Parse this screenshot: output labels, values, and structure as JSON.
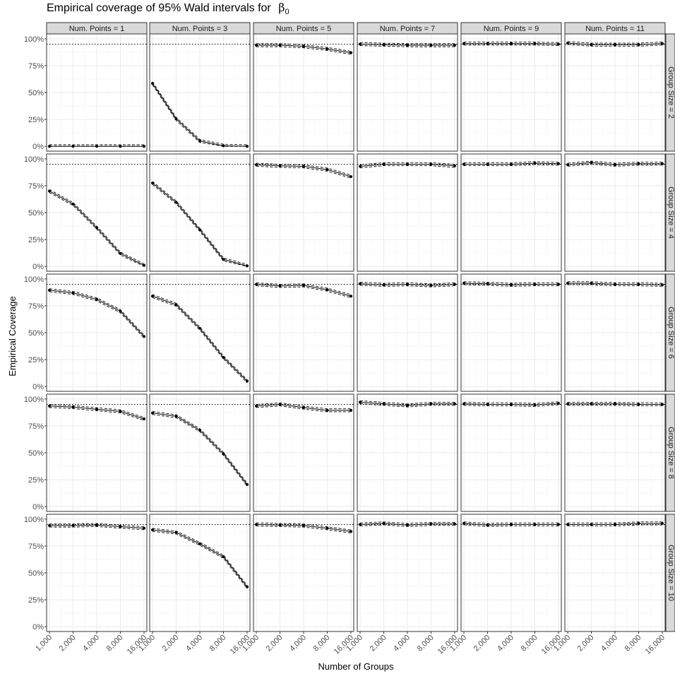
{
  "chart_data": {
    "type": "line",
    "title": "Empirical coverage of 95% Wald intervals for",
    "title_symbol": "β",
    "title_subscript": "0",
    "xlabel": "Number of Groups",
    "ylabel": "Empirical Coverage",
    "x_scale": "log2",
    "x_ticks": [
      1000,
      2000,
      4000,
      8000,
      16000
    ],
    "x_tick_labels": [
      "1,000",
      "2,000",
      "4,000",
      "8,000",
      "16,000"
    ],
    "y_ticks": [
      0,
      0.25,
      0.5,
      0.75,
      1.0
    ],
    "y_tick_labels": [
      "0%",
      "25%",
      "50%",
      "75%",
      "100%"
    ],
    "ylim": [
      0,
      1
    ],
    "reference_line": 0.95,
    "col_labels": [
      "Num. Points = 1",
      "Num. Points = 3",
      "Num. Points = 5",
      "Num. Points = 7",
      "Num. Points = 9",
      "Num. Points = 11"
    ],
    "row_labels": [
      "Group Size = 2",
      "Group Size = 4",
      "Group Size = 6",
      "Group Size = 8",
      "Group Size = 10"
    ],
    "x": [
      1000,
      2000,
      4000,
      8000,
      16000
    ],
    "ci_half_width": 0.014,
    "coverage": [
      [
        [
          0.0,
          0.0,
          0.0,
          0.0,
          0.0
        ],
        [
          0.585,
          0.255,
          0.05,
          0.005,
          0.0
        ],
        [
          0.94,
          0.94,
          0.93,
          0.905,
          0.87
        ],
        [
          0.95,
          0.945,
          0.94,
          0.94,
          0.94
        ],
        [
          0.955,
          0.955,
          0.955,
          0.955,
          0.95
        ],
        [
          0.96,
          0.945,
          0.945,
          0.945,
          0.955
        ]
      ],
      [
        [
          0.7,
          0.58,
          0.36,
          0.12,
          0.01
        ],
        [
          0.775,
          0.595,
          0.34,
          0.065,
          0.005
        ],
        [
          0.945,
          0.935,
          0.93,
          0.9,
          0.835
        ],
        [
          0.93,
          0.95,
          0.95,
          0.95,
          0.935
        ],
        [
          0.95,
          0.95,
          0.95,
          0.96,
          0.955
        ],
        [
          0.945,
          0.965,
          0.945,
          0.955,
          0.955
        ]
      ],
      [
        [
          0.895,
          0.87,
          0.81,
          0.7,
          0.465
        ],
        [
          0.84,
          0.76,
          0.54,
          0.27,
          0.05
        ],
        [
          0.95,
          0.935,
          0.94,
          0.9,
          0.84
        ],
        [
          0.955,
          0.945,
          0.95,
          0.94,
          0.95
        ],
        [
          0.96,
          0.955,
          0.945,
          0.95,
          0.95
        ],
        [
          0.96,
          0.96,
          0.95,
          0.95,
          0.945
        ]
      ],
      [
        [
          0.935,
          0.925,
          0.905,
          0.885,
          0.815
        ],
        [
          0.87,
          0.84,
          0.71,
          0.49,
          0.205
        ],
        [
          0.935,
          0.95,
          0.92,
          0.895,
          0.895
        ],
        [
          0.97,
          0.955,
          0.94,
          0.955,
          0.955
        ],
        [
          0.955,
          0.95,
          0.95,
          0.945,
          0.96
        ],
        [
          0.955,
          0.955,
          0.955,
          0.95,
          0.95
        ]
      ],
      [
        [
          0.94,
          0.94,
          0.945,
          0.93,
          0.915
        ],
        [
          0.9,
          0.875,
          0.77,
          0.65,
          0.37
        ],
        [
          0.95,
          0.945,
          0.94,
          0.915,
          0.885
        ],
        [
          0.95,
          0.96,
          0.945,
          0.955,
          0.955
        ],
        [
          0.96,
          0.945,
          0.95,
          0.95,
          0.95
        ],
        [
          0.95,
          0.95,
          0.95,
          0.96,
          0.96
        ]
      ]
    ]
  }
}
